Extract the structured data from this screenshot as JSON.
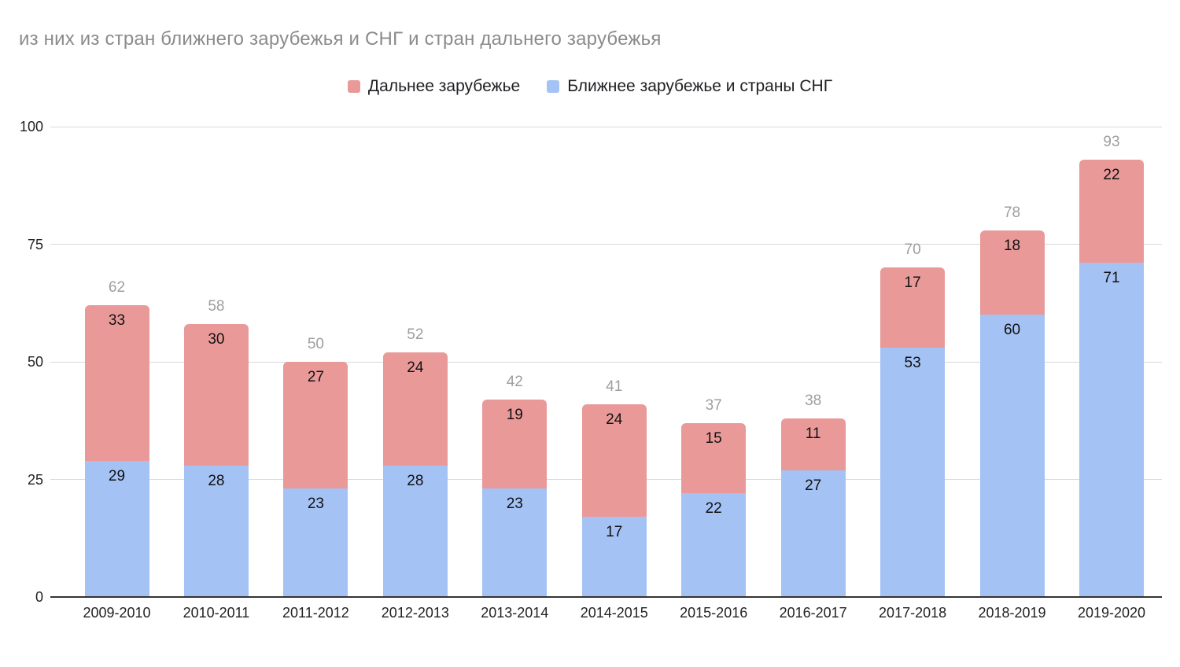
{
  "title": "из них из стран ближнего зарубежья и СНГ и стран дальнего зарубежья",
  "legend": {
    "items": [
      {
        "label": "Дальнее зарубежье",
        "color": "#ea9999"
      },
      {
        "label": "Ближнее зарубежье и страны СНГ",
        "color": "#a4c2f4"
      }
    ]
  },
  "chart_data": {
    "type": "bar",
    "stacked": true,
    "title": "из них из стран ближнего зарубежья и СНГ и стран дальнего зарубежья",
    "categories": [
      "2009-2010",
      "2010-2011",
      "2011-2012",
      "2012-2013",
      "2013-2014",
      "2014-2015",
      "2015-2016",
      "2016-2017",
      "2017-2018",
      "2018-2019",
      "2019-2020"
    ],
    "series": [
      {
        "name": "Ближнее зарубежье и страны СНГ",
        "color": "#a4c2f4",
        "values": [
          29,
          28,
          23,
          28,
          23,
          17,
          22,
          27,
          53,
          60,
          71
        ]
      },
      {
        "name": "Дальнее зарубежье",
        "color": "#ea9999",
        "values": [
          33,
          30,
          27,
          24,
          19,
          24,
          15,
          11,
          17,
          18,
          22
        ]
      }
    ],
    "totals": [
      62,
      58,
      50,
      52,
      42,
      41,
      37,
      38,
      70,
      78,
      93
    ],
    "y_ticks": [
      0,
      25,
      50,
      75,
      100
    ],
    "ylim": [
      0,
      100
    ],
    "xlabel": "",
    "ylabel": "",
    "grid": true,
    "legend_position": "top",
    "colors": {
      "total_label": "#9e9e9e",
      "segment_label": "#111111",
      "axis_text": "#222222",
      "gridline": "#d9d9d9",
      "axis_line": "#333333",
      "title": "#8b8b8b"
    }
  }
}
